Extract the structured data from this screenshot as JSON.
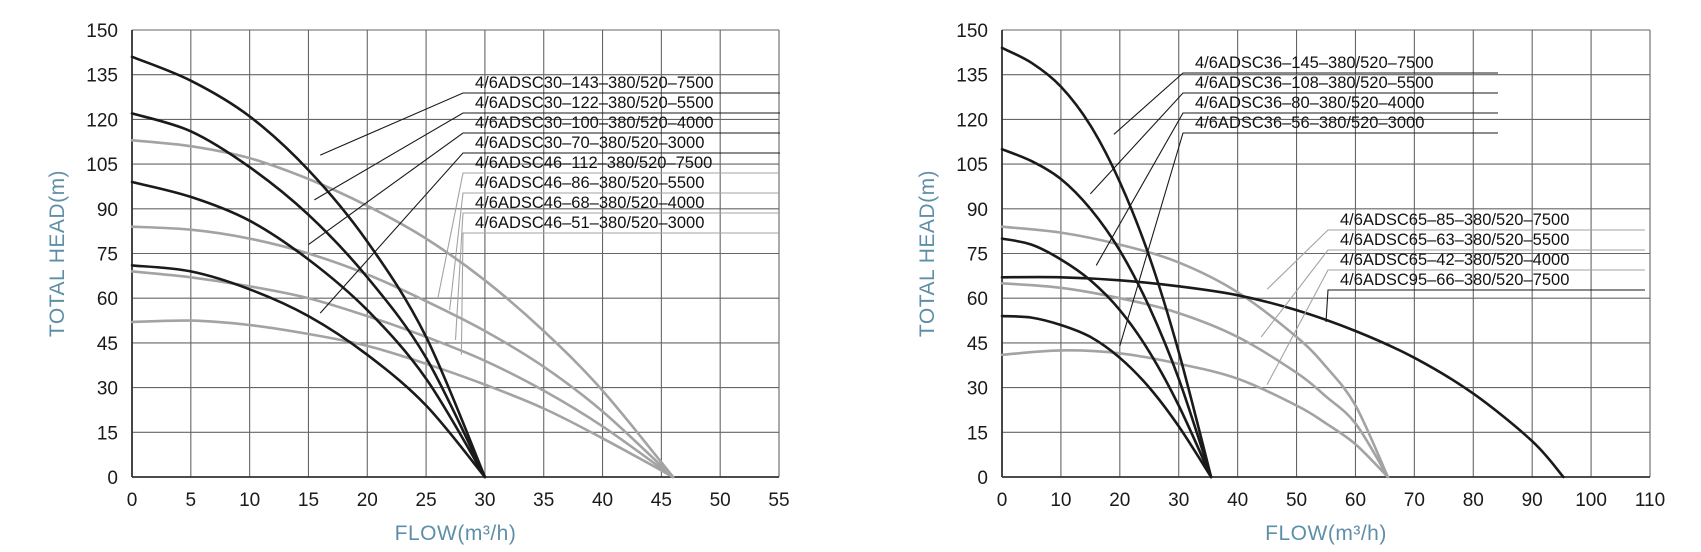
{
  "colors": {
    "dark": "#1a1a1a",
    "light": "#a3a3a3",
    "grid": "#666666",
    "axis_label": "#5f8fa8"
  },
  "chart_data": [
    {
      "type": "line",
      "xlabel": "FLOW(m³/h)",
      "ylabel": "TOTAL HEAD(m)",
      "xlim": [
        0,
        55
      ],
      "ylim": [
        0,
        150
      ],
      "xticks": [
        0,
        5,
        10,
        15,
        20,
        25,
        30,
        35,
        40,
        45,
        50,
        55
      ],
      "yticks": [
        0,
        15,
        30,
        45,
        60,
        75,
        90,
        105,
        120,
        135,
        150
      ],
      "grid": true,
      "legend_position": "top-right",
      "series": [
        {
          "name": "4/6ADSC30-143-380/520-7500",
          "color": "dark",
          "x": [
            0,
            5,
            10,
            15,
            20,
            25,
            30
          ],
          "y": [
            141,
            133,
            121,
            103,
            79,
            47,
            0
          ],
          "pointer": [
            16,
            108
          ]
        },
        {
          "name": "4/6ADSC30-122-380/520-5500",
          "color": "dark",
          "x": [
            0,
            5,
            10,
            15,
            20,
            25,
            30
          ],
          "y": [
            122,
            116,
            104,
            88,
            67,
            40,
            0
          ],
          "pointer": [
            15.5,
            93
          ]
        },
        {
          "name": "4/6ADSC30-100-380/520-4000",
          "color": "dark",
          "x": [
            0,
            5,
            10,
            15,
            20,
            25,
            30
          ],
          "y": [
            99,
            94,
            86,
            73,
            56,
            33,
            0
          ],
          "pointer": [
            15,
            78
          ]
        },
        {
          "name": "4/6ADSC30-70-380/520-3000",
          "color": "dark",
          "x": [
            0,
            5,
            10,
            15,
            20,
            25,
            30
          ],
          "y": [
            71,
            69,
            63,
            54,
            41,
            24,
            0
          ],
          "pointer": [
            16,
            55
          ]
        },
        {
          "name": "4/6ADSC46-112-380/520-7500",
          "color": "light",
          "x": [
            0,
            5,
            10,
            15,
            20,
            25,
            30,
            35,
            40,
            46
          ],
          "y": [
            113,
            111,
            107,
            100,
            91,
            80,
            66,
            49,
            29,
            0
          ],
          "pointer": [
            26,
            60
          ]
        },
        {
          "name": "4/6ADSC46-86-380/520-5500",
          "color": "light",
          "x": [
            0,
            5,
            10,
            15,
            20,
            25,
            30,
            35,
            40,
            46
          ],
          "y": [
            84,
            83,
            80,
            75,
            68,
            59,
            49,
            37,
            22,
            0
          ],
          "pointer": [
            27,
            56
          ]
        },
        {
          "name": "4/6ADSC46-68-380/520-4000",
          "color": "light",
          "x": [
            0,
            5,
            10,
            15,
            20,
            25,
            30,
            35,
            40,
            46
          ],
          "y": [
            69,
            67,
            64,
            60,
            54,
            47,
            39,
            29,
            17,
            0
          ],
          "pointer": [
            27.5,
            46
          ]
        },
        {
          "name": "4/6ADSC46-51-380/520-3000",
          "color": "light",
          "x": [
            0,
            5,
            10,
            15,
            20,
            25,
            30,
            35,
            40,
            46
          ],
          "y": [
            52,
            52.5,
            51,
            48,
            44,
            38,
            31,
            23,
            13,
            0
          ],
          "pointer": [
            28,
            41
          ]
        }
      ]
    },
    {
      "type": "line",
      "xlabel": "FLOW(m³/h)",
      "ylabel": "TOTAL HEAD(m)",
      "xlim": [
        0,
        110
      ],
      "ylim": [
        0,
        150
      ],
      "xticks": [
        0,
        10,
        20,
        30,
        40,
        50,
        60,
        70,
        80,
        90,
        100,
        110
      ],
      "yticks": [
        0,
        15,
        30,
        45,
        60,
        75,
        90,
        105,
        120,
        135,
        150
      ],
      "grid": true,
      "legend_position": "top-center",
      "series": [
        {
          "name": "4/6ADSC36-145-380/520-7500",
          "color": "dark",
          "x": [
            0,
            5,
            10,
            15,
            20,
            25,
            30,
            35.5
          ],
          "y": [
            144,
            139,
            131,
            118,
            99,
            74,
            42,
            0
          ],
          "pointer": [
            19,
            115
          ]
        },
        {
          "name": "4/6ADSC36-108-380/520-5500",
          "color": "dark",
          "x": [
            0,
            5,
            10,
            15,
            20,
            25,
            30,
            35.5
          ],
          "y": [
            110,
            106,
            100,
            90,
            76,
            57,
            33,
            0
          ],
          "pointer": [
            15,
            95
          ]
        },
        {
          "name": "4/6ADSC36-80-380/520-4000",
          "color": "dark",
          "x": [
            0,
            5,
            10,
            15,
            20,
            25,
            30,
            35.5
          ],
          "y": [
            80,
            78,
            73,
            66,
            56,
            42,
            24,
            0
          ],
          "pointer": [
            16,
            71
          ]
        },
        {
          "name": "4/6ADSC36-56-380/520-3000",
          "color": "dark",
          "x": [
            0,
            5,
            10,
            15,
            20,
            25,
            30,
            35.5
          ],
          "y": [
            54,
            53.5,
            51,
            47,
            40,
            30,
            17,
            0
          ],
          "pointer": [
            20,
            44
          ]
        },
        {
          "name": "4/6ADSC65-85-380/520-7500",
          "color": "light",
          "x": [
            0,
            10,
            20,
            30,
            40,
            50,
            55,
            60,
            65.5
          ],
          "y": [
            84,
            82,
            78,
            72,
            62,
            47,
            37,
            24,
            0
          ],
          "pointer": [
            45,
            63
          ]
        },
        {
          "name": "4/6ADSC65-63-380/520-5500",
          "color": "light",
          "x": [
            0,
            10,
            20,
            30,
            40,
            50,
            55,
            60,
            65.5
          ],
          "y": [
            65,
            63.5,
            60,
            55,
            47,
            35,
            27,
            18,
            0
          ],
          "pointer": [
            44,
            47
          ]
        },
        {
          "name": "4/6ADSC65-42-380/520-4000",
          "color": "light",
          "x": [
            0,
            10,
            20,
            30,
            40,
            50,
            55,
            60,
            65.5
          ],
          "y": [
            41,
            42.5,
            41.5,
            38,
            33,
            24,
            18,
            11,
            0
          ],
          "pointer": [
            45,
            31
          ]
        },
        {
          "name": "4/6ADSC95-66-380/520-7500",
          "color": "dark",
          "x": [
            0,
            10,
            20,
            30,
            40,
            50,
            60,
            70,
            80,
            90,
            95.3
          ],
          "y": [
            67,
            67,
            66,
            64,
            61,
            56,
            49,
            40,
            28,
            12,
            0
          ],
          "pointer": [
            55,
            52
          ]
        }
      ]
    }
  ]
}
